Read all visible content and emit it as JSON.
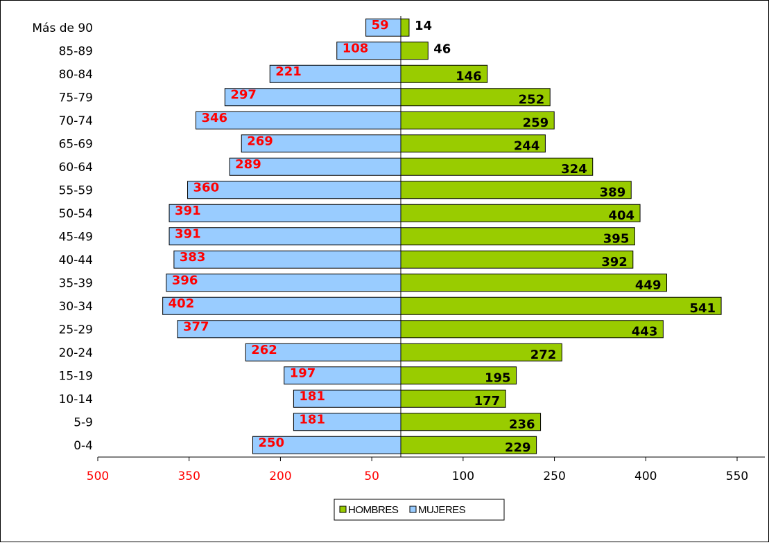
{
  "chart_data": {
    "type": "bar",
    "orientation": "horizontal",
    "layout": "population-pyramid",
    "categories": [
      "Más de 90",
      "85-89",
      "80-84",
      "75-79",
      "70-74",
      "65-69",
      "60-64",
      "55-59",
      "50-54",
      "45-49",
      "40-44",
      "35-39",
      "30-34",
      "25-29",
      "20-24",
      "15-19",
      "10-14",
      "5-9",
      "0-4"
    ],
    "series": [
      {
        "name": "HOMBRES",
        "color": "#99cc00",
        "label_color": "#000000",
        "side": "right",
        "values": [
          14,
          46,
          146,
          252,
          259,
          244,
          324,
          389,
          404,
          395,
          392,
          449,
          541,
          443,
          272,
          195,
          177,
          236,
          229
        ]
      },
      {
        "name": "MUJERES",
        "color": "#99ccff",
        "label_color": "#ff0000",
        "side": "left",
        "values": [
          59,
          108,
          221,
          297,
          346,
          269,
          289,
          360,
          391,
          391,
          383,
          396,
          402,
          377,
          262,
          197,
          181,
          181,
          250
        ]
      }
    ],
    "x_ticks": [
      {
        "label": "500",
        "color": "#ff0000"
      },
      {
        "label": "350",
        "color": "#ff0000"
      },
      {
        "label": "200",
        "color": "#ff0000"
      },
      {
        "label": "50",
        "color": "#ff0000"
      },
      {
        "label": "100",
        "color": "#000000"
      },
      {
        "label": "250",
        "color": "#000000"
      },
      {
        "label": "400",
        "color": "#000000"
      },
      {
        "label": "550",
        "color": "#000000"
      }
    ],
    "xlim": [
      -500,
      600
    ],
    "legend": {
      "position": "bottom",
      "entries": [
        "HOMBRES",
        "MUJERES"
      ]
    },
    "grid": false
  }
}
